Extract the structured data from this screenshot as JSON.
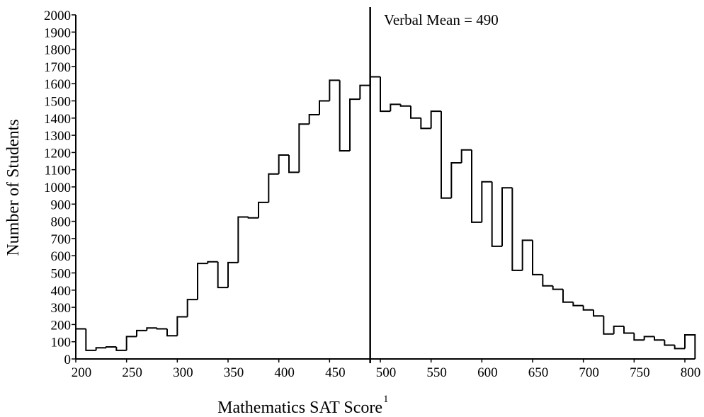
{
  "chart_data": {
    "type": "histogram",
    "x_label": "Mathematics SAT Score",
    "x_label_footnote": "1",
    "y_label": "Number of Students",
    "annotation": "Verbal Mean = 490",
    "mean_line": 490,
    "bins": [
      200,
      210,
      220,
      230,
      240,
      250,
      260,
      270,
      280,
      290,
      300,
      310,
      320,
      330,
      340,
      350,
      360,
      370,
      380,
      390,
      400,
      410,
      420,
      430,
      440,
      450,
      460,
      470,
      480,
      490,
      500,
      510,
      520,
      530,
      540,
      550,
      560,
      570,
      580,
      590,
      600,
      610,
      620,
      630,
      640,
      650,
      660,
      670,
      680,
      690,
      700,
      710,
      720,
      730,
      740,
      750,
      760,
      770,
      780,
      790,
      800,
      810
    ],
    "counts": [
      175,
      50,
      65,
      70,
      50,
      130,
      165,
      180,
      175,
      135,
      245,
      345,
      555,
      565,
      415,
      560,
      825,
      820,
      910,
      1075,
      1185,
      1085,
      1365,
      1420,
      1500,
      1620,
      1210,
      1510,
      1590,
      1640,
      1440,
      1480,
      1470,
      1400,
      1340,
      1440,
      935,
      1140,
      1215,
      795,
      1030,
      655,
      995,
      515,
      690,
      490,
      425,
      405,
      330,
      310,
      285,
      250,
      145,
      190,
      150,
      110,
      130,
      110,
      80,
      60,
      140
    ],
    "color": "#000000",
    "xlim": [
      200,
      810
    ],
    "xticks": [
      200,
      250,
      300,
      350,
      400,
      450,
      500,
      550,
      600,
      650,
      700,
      750,
      800
    ],
    "ylim": [
      0,
      2000
    ],
    "yticks": [
      0,
      100,
      200,
      300,
      400,
      500,
      600,
      700,
      800,
      900,
      1000,
      1100,
      1200,
      1300,
      1400,
      1500,
      1600,
      1700,
      1800,
      1900,
      2000
    ]
  }
}
